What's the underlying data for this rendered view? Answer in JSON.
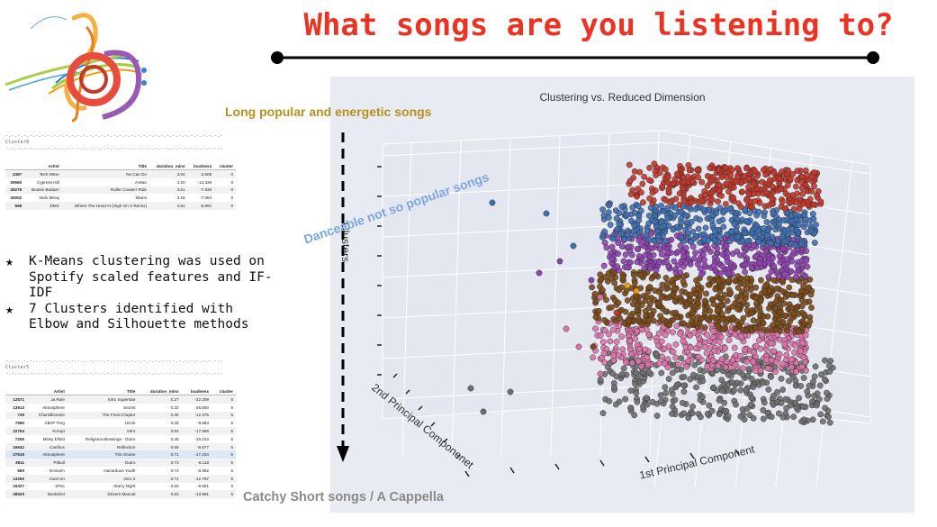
{
  "slide": {
    "title": "What songs are you listening to?",
    "bullets": [
      "K-Means clustering was used on Spotify scaled features and IF-IDF",
      "7 Clusters identified with Elbow and Silhouette methods"
    ],
    "annotations": {
      "top": "Long popular and energetic songs",
      "diagonal": "Danceable not so popular songs",
      "bottom": "Catchy Short songs / A Cappella"
    },
    "colors": {
      "title": "#ea3323",
      "top_annotation": "#b8901d",
      "diagonal_annotation": "#7ea6dd",
      "bottom_annotation": "#8a8a8a"
    }
  },
  "logo": {
    "icon": "music-clef-logo-icon"
  },
  "table_top": {
    "label": "Cluster0",
    "columns": [
      "",
      "Artist",
      "Title",
      "duration_mins",
      "loudness",
      "cluster"
    ],
    "rows": [
      [
        "2387",
        "Tech N9ne",
        "No Can Do",
        "3.94",
        "-3.605",
        "0"
      ],
      [
        "29560",
        "Cypress Hill",
        "A Man",
        "4.20",
        "-13.326",
        "0"
      ],
      [
        "28275",
        "Boosie Badazz",
        "Roller Coaster Ride",
        "3.51",
        "-7.830",
        "0"
      ],
      [
        "26002",
        "Nicki Minaj",
        "Miami",
        "3.18",
        "-7.084",
        "0"
      ],
      [
        "968",
        "DMX",
        "Where The Hood At (High On X Remix)",
        "4.81",
        "-5.891",
        "0"
      ]
    ]
  },
  "table_bottom": {
    "label": "Cluster5",
    "columns": [
      "",
      "Artist",
      "Title",
      "duration_mins",
      "loudness",
      "cluster"
    ],
    "rows": [
      [
        "12571",
        "Ja Rule",
        "Intro Superstar",
        "0.27",
        "-22.209",
        "5"
      ],
      [
        "13913",
        "Atmosphere",
        "Secret",
        "0.32",
        "-26.800",
        "5"
      ],
      [
        "749",
        "Chamillionaire",
        "The Final Chapter",
        "0.35",
        "-12.375",
        "5"
      ],
      [
        "7560",
        "A$AP Ferg",
        "Uncle",
        "0.28",
        "-9.883",
        "5"
      ],
      [
        "22764",
        "Kurupt",
        "Intro",
        "0.54",
        "-17.689",
        "5"
      ],
      [
        "7205",
        "Missy Elliott",
        "Religious Blessings - Outro",
        "0.45",
        "-16.313",
        "5"
      ],
      [
        "16642",
        "Canibus",
        "Reflection",
        "0.69",
        "-8.677",
        "5"
      ],
      [
        "27619",
        "Atmosphere",
        "The Ocean",
        "0.71",
        "-17.234",
        "5"
      ],
      [
        "3911",
        "Pitbull",
        "Outro",
        "0.73",
        "-8.118",
        "5"
      ],
      [
        "660",
        "Eminem",
        "Hazardous Youth",
        "0.73",
        "-9.992",
        "5"
      ],
      [
        "13260",
        "Cam'ron",
        "Intro 2",
        "0.74",
        "-12.787",
        "5"
      ],
      [
        "15327",
        "2Pac",
        "Starry Night",
        "0.50",
        "-8.591",
        "5"
      ],
      [
        "28520",
        "Buckshot",
        "Drivers Manual",
        "0.53",
        "-13.981",
        "5"
      ]
    ]
  },
  "chart_data": {
    "type": "scatter",
    "title": "Clustering vs. Reduced Dimension",
    "xlabel": "1st Principal Component",
    "ylabel": "2nd Principal Componenet",
    "zlabel": "Clusters",
    "grid": true,
    "series": [
      {
        "color": "#c0392b",
        "z_level": 6
      },
      {
        "color": "#3f6fb0",
        "z_level": 5
      },
      {
        "color": "#8e44ad",
        "z_level": 4
      },
      {
        "color": "#7b4a1a",
        "z_level": 3
      },
      {
        "color": "#d974a8",
        "z_level": 2
      },
      {
        "color": "#6e6e6e",
        "z_level": 1
      }
    ]
  }
}
